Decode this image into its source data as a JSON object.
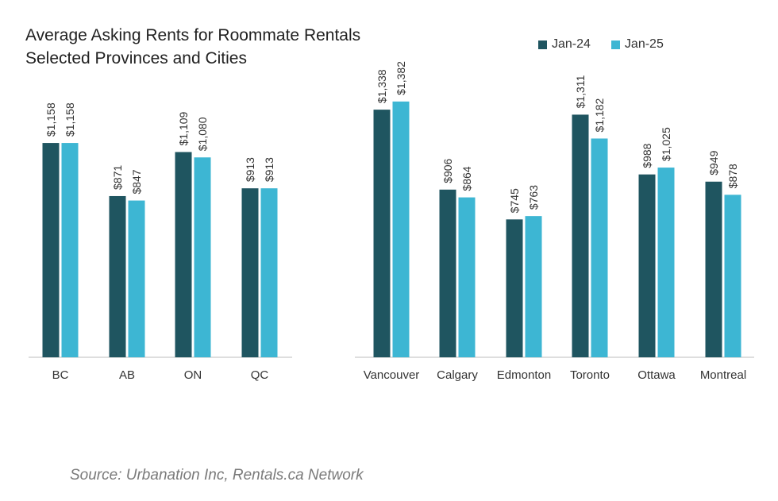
{
  "chart_data": {
    "type": "bar",
    "title": "Average Asking Rents for Roommate Rentals",
    "subtitle": "Selected Provinces and Cities",
    "categories": [
      "BC",
      "AB",
      "ON",
      "QC",
      "Vancouver",
      "Calgary",
      "Edmonton",
      "Toronto",
      "Ottawa",
      "Montreal"
    ],
    "series": [
      {
        "name": "Jan-24",
        "values": [
          1158,
          871,
          1109,
          913,
          1338,
          906,
          745,
          1311,
          988,
          949
        ],
        "labels": [
          "$1,158",
          "$871",
          "$1,109",
          "$913",
          "$1,338",
          "$906",
          "$745",
          "$1,311",
          "$988",
          "$949"
        ],
        "color": "#1f5560"
      },
      {
        "name": "Jan-25",
        "values": [
          1158,
          847,
          1080,
          913,
          1382,
          864,
          763,
          1182,
          1025,
          878
        ],
        "labels": [
          "$1,158",
          "$847",
          "$1,080",
          "$913",
          "$1,382",
          "$864",
          "$763",
          "$1,182",
          "$1,025",
          "$878"
        ],
        "color": "#3db6d3"
      }
    ],
    "xlabel": "",
    "ylabel": "",
    "ylim": [
      0,
      1450
    ],
    "grid": false,
    "legend_position": "top-right",
    "source": "Source: Urbanation Inc, Rentals.ca Network"
  }
}
